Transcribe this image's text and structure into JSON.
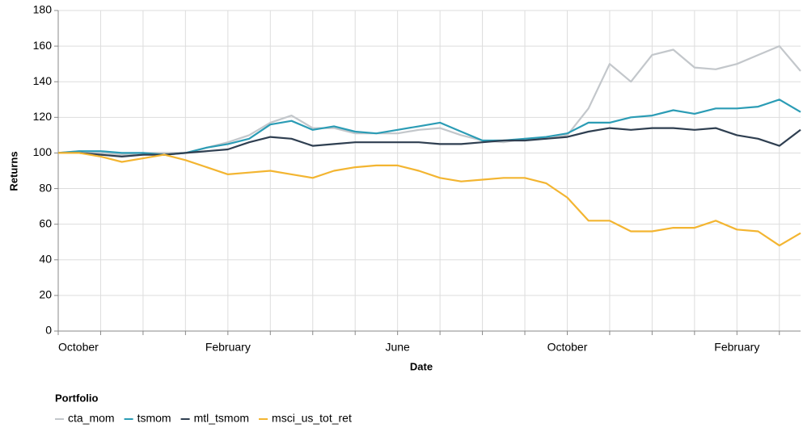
{
  "chart_data": {
    "type": "line",
    "x_label": "Date",
    "y_label": "Returns",
    "categories": [
      "October",
      null,
      null,
      null,
      null,
      null,
      null,
      null,
      "February",
      null,
      null,
      null,
      null,
      null,
      null,
      null,
      "June",
      null,
      null,
      null,
      null,
      null,
      null,
      null,
      "October",
      null,
      null,
      null,
      null,
      null,
      null,
      null,
      "February",
      null,
      null,
      null
    ],
    "series": [
      {
        "name": "cta_mom",
        "color": "#c3c7cb",
        "values": [
          100,
          101,
          100,
          99,
          100,
          100,
          100,
          103,
          106,
          110,
          117,
          121,
          114,
          114,
          111,
          111,
          111,
          113,
          114,
          110,
          107,
          106,
          108,
          108,
          110,
          125,
          150,
          140,
          155,
          158,
          148,
          147,
          150,
          155,
          160,
          146
        ]
      },
      {
        "name": "tsmom",
        "color": "#2b9cb5",
        "values": [
          100,
          101,
          101,
          100,
          100,
          99,
          100,
          103,
          105,
          108,
          116,
          118,
          113,
          115,
          112,
          111,
          113,
          115,
          117,
          112,
          107,
          107,
          108,
          109,
          111,
          117,
          117,
          120,
          121,
          124,
          122,
          125,
          125,
          126,
          130,
          123
        ]
      },
      {
        "name": "mtl_tsmom",
        "color": "#2f3f51",
        "values": [
          100,
          100,
          99,
          98,
          99,
          99,
          100,
          101,
          102,
          106,
          109,
          108,
          104,
          105,
          106,
          106,
          106,
          106,
          105,
          105,
          106,
          107,
          107,
          108,
          109,
          112,
          114,
          113,
          114,
          114,
          113,
          114,
          110,
          108,
          104,
          113
        ]
      },
      {
        "name": "msci_us_tot_ret",
        "color": "#f3b531",
        "values": [
          100,
          100,
          98,
          95,
          97,
          99,
          96,
          92,
          88,
          89,
          90,
          88,
          86,
          90,
          92,
          93,
          93,
          90,
          86,
          84,
          85,
          86,
          86,
          83,
          75,
          62,
          62,
          56,
          56,
          58,
          58,
          62,
          57,
          56,
          48,
          55
        ]
      }
    ],
    "ylim": [
      0,
      180
    ],
    "yticks": [
      0,
      20,
      40,
      60,
      80,
      100,
      120,
      140,
      160,
      180
    ],
    "grid": true,
    "legend_title": "Portfolio",
    "legend_position": "bottom-left"
  }
}
